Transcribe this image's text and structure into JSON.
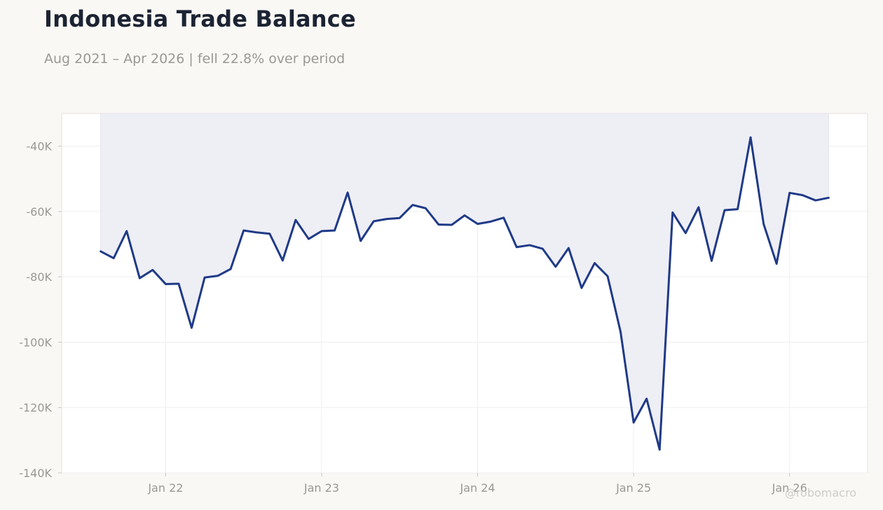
{
  "header": {
    "title": "Indonesia Trade Balance",
    "subtitle": "Aug 2021 – Apr 2026 | fell 22.8% over period"
  },
  "watermark": "@robomacro",
  "colors": {
    "line": "#1f3a87",
    "fill": "#eeeef5",
    "plot_bg": "#ffffff",
    "page_bg": "#f9f8f5",
    "grid": "#efefef",
    "axis_text": "#9a9893"
  },
  "chart_data": {
    "type": "area",
    "title": "Indonesia Trade Balance",
    "subtitle": "Aug 2021 – Apr 2026 | fell 22.8% over period",
    "xlabel": "",
    "ylabel": "",
    "ylim": [
      -140000,
      -30000
    ],
    "xlim": [
      "2021-05",
      "2026-07"
    ],
    "grid": true,
    "fill": "above",
    "y_ticks": [
      -40000,
      -60000,
      -80000,
      -100000,
      -120000,
      -140000
    ],
    "y_tick_labels": [
      "-40K",
      "-60K",
      "-80K",
      "-100K",
      "-120K",
      "-140K"
    ],
    "x_ticks": [
      "2022-01",
      "2023-01",
      "2024-01",
      "2025-01",
      "2026-01"
    ],
    "x_tick_labels": [
      "Jan 22",
      "Jan 23",
      "Jan 24",
      "Jan 25",
      "Jan 26"
    ],
    "x": [
      "2021-08",
      "2021-09",
      "2021-10",
      "2021-11",
      "2021-12",
      "2022-01",
      "2022-02",
      "2022-03",
      "2022-04",
      "2022-05",
      "2022-06",
      "2022-07",
      "2022-08",
      "2022-09",
      "2022-10",
      "2022-11",
      "2022-12",
      "2023-01",
      "2023-02",
      "2023-03",
      "2023-04",
      "2023-05",
      "2023-06",
      "2023-07",
      "2023-08",
      "2023-09",
      "2023-10",
      "2023-11",
      "2023-12",
      "2024-01",
      "2024-02",
      "2024-03",
      "2024-04",
      "2024-05",
      "2024-06",
      "2024-07",
      "2024-08",
      "2024-09",
      "2024-10",
      "2024-11",
      "2024-12",
      "2025-01",
      "2025-02",
      "2025-03",
      "2025-04",
      "2025-05",
      "2025-06",
      "2025-07",
      "2025-08",
      "2025-09",
      "2025-10",
      "2025-11",
      "2025-12",
      "2026-01",
      "2026-02",
      "2026-03",
      "2026-04"
    ],
    "values": [
      -72200,
      -74300,
      -66000,
      -80400,
      -77900,
      -82200,
      -82100,
      -95600,
      -80200,
      -79700,
      -77600,
      -65800,
      -66400,
      -66800,
      -75000,
      -62600,
      -68400,
      -66000,
      -65800,
      -54200,
      -69000,
      -63000,
      -62300,
      -62000,
      -58000,
      -59000,
      -64000,
      -64100,
      -61200,
      -63800,
      -63100,
      -61900,
      -70900,
      -70300,
      -71400,
      -76900,
      -71200,
      -83400,
      -75800,
      -79800,
      -96900,
      -124600,
      -117300,
      -132900,
      -60300,
      -66600,
      -58700,
      -75100,
      -59600,
      -59300,
      -37300,
      -63800,
      -76000,
      -54300,
      -55000,
      -56600,
      -55800
    ]
  }
}
